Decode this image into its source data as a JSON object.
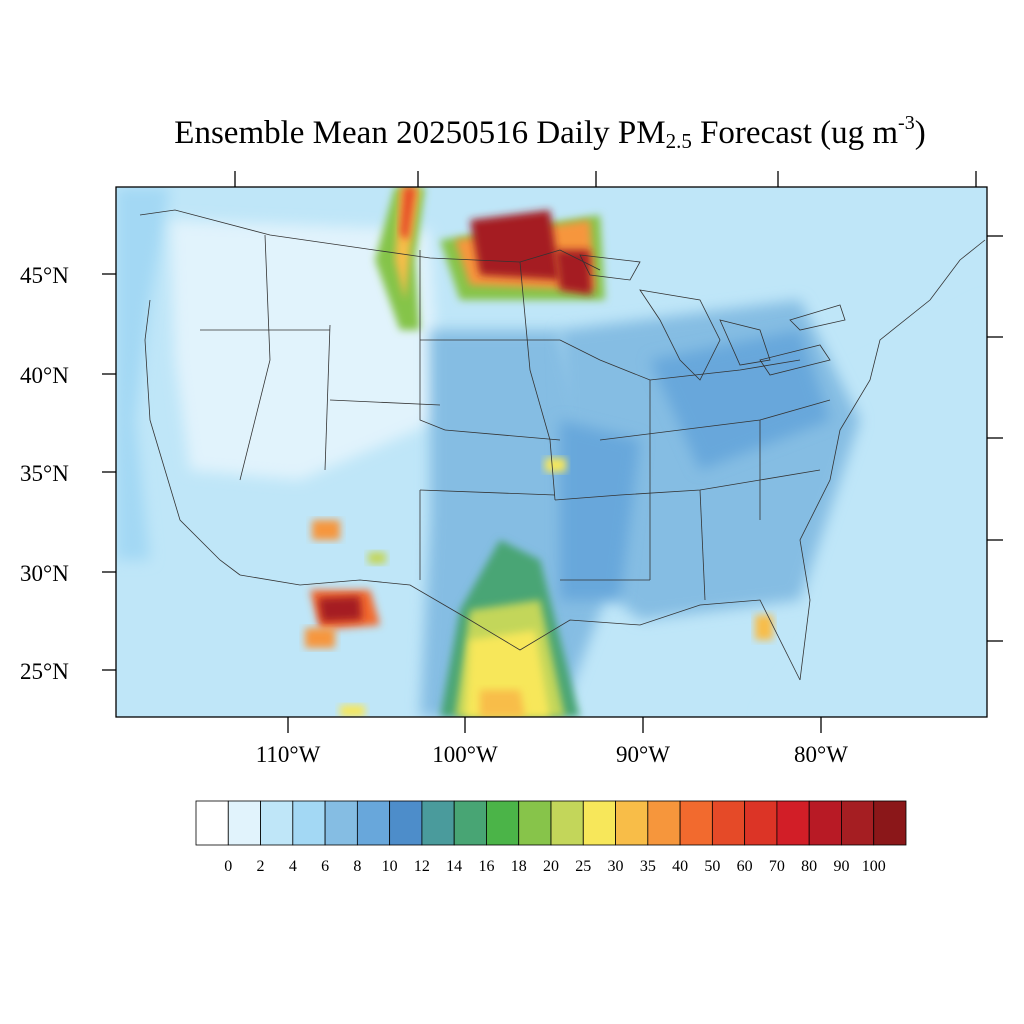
{
  "title": {
    "prefix": "Ensemble Mean 20250516 Daily PM",
    "subscript": "2.5",
    "middle": " Forecast (ug m",
    "superscript": "-3",
    "suffix": ")"
  },
  "map": {
    "lat_labels": [
      "45°N",
      "40°N",
      "35°N",
      "30°N",
      "25°N"
    ],
    "lon_labels": [
      "110°W",
      "100°W",
      "90°W",
      "80°W"
    ]
  },
  "colorbar": {
    "levels": [
      "0",
      "2",
      "4",
      "6",
      "8",
      "10",
      "12",
      "14",
      "16",
      "18",
      "20",
      "25",
      "30",
      "35",
      "40",
      "50",
      "60",
      "70",
      "80",
      "90",
      "100"
    ],
    "colors": [
      "#ffffff",
      "#e1f3fc",
      "#bfe6f8",
      "#a3d8f4",
      "#85bde3",
      "#68a7db",
      "#4d8dca",
      "#4a9b9c",
      "#48a574",
      "#4bb448",
      "#87c44a",
      "#c3d65a",
      "#f7e75a",
      "#f8bd48",
      "#f6963c",
      "#f26a2e",
      "#e54a28",
      "#dc3426",
      "#d21e27",
      "#b81a25",
      "#a51e22",
      "#8b1719"
    ]
  }
}
